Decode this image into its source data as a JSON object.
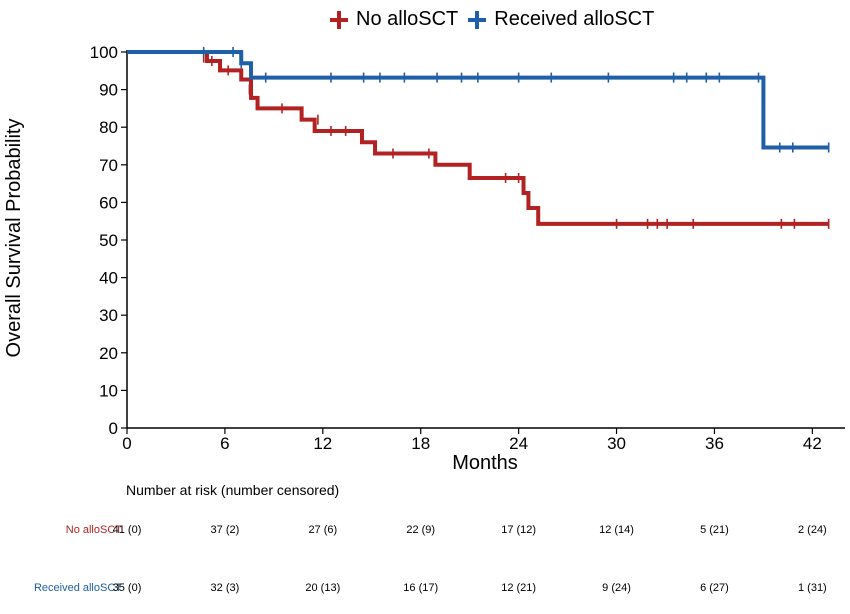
{
  "chart_data": {
    "type": "line",
    "subtype": "kaplan-meier step",
    "xlabel": "Months",
    "ylabel": "Overall Survival Probability",
    "xlim": [
      0,
      44
    ],
    "ylim": [
      0,
      100
    ],
    "xticks": [
      0,
      6,
      12,
      18,
      24,
      30,
      36,
      42
    ],
    "yticks": [
      0,
      10,
      20,
      30,
      40,
      50,
      60,
      70,
      80,
      90,
      100
    ],
    "grid": false,
    "legend_position": "top",
    "series": [
      {
        "name": "No alloSCT",
        "color": "#b22222",
        "steps": [
          [
            0,
            100
          ],
          [
            4.9,
            97.6
          ],
          [
            5.7,
            95.1
          ],
          [
            7.0,
            92.7
          ],
          [
            7.6,
            87.8
          ],
          [
            8.0,
            85.0
          ],
          [
            10.7,
            82.0
          ],
          [
            11.5,
            79.0
          ],
          [
            14.4,
            76.0
          ],
          [
            15.2,
            73.0
          ],
          [
            18.9,
            70.0
          ],
          [
            21.0,
            66.5
          ],
          [
            24.3,
            62.5
          ],
          [
            24.6,
            58.5
          ],
          [
            25.2,
            54.3
          ],
          [
            43.0,
            54.3
          ]
        ],
        "censored": [
          [
            4.7,
            98.5
          ],
          [
            5.2,
            97.6
          ],
          [
            6.2,
            95.1
          ],
          [
            7.5,
            90.0
          ],
          [
            9.5,
            85.0
          ],
          [
            11.7,
            82.0
          ],
          [
            12.5,
            79.0
          ],
          [
            13.4,
            79.0
          ],
          [
            16.3,
            73.0
          ],
          [
            18.5,
            73.0
          ],
          [
            23.2,
            66.5
          ],
          [
            24.0,
            66.5
          ],
          [
            30.0,
            54.3
          ],
          [
            31.9,
            54.3
          ],
          [
            32.5,
            54.3
          ],
          [
            33.1,
            54.3
          ],
          [
            34.7,
            54.3
          ],
          [
            40.1,
            54.3
          ],
          [
            40.9,
            54.3
          ],
          [
            43.0,
            54.3
          ]
        ]
      },
      {
        "name": "Received alloSCT",
        "color": "#1f5fa8",
        "steps": [
          [
            0,
            100
          ],
          [
            7.0,
            97.0
          ],
          [
            7.6,
            93.2
          ],
          [
            38.8,
            93.2
          ],
          [
            39.0,
            74.6
          ],
          [
            43.0,
            74.6
          ]
        ],
        "censored": [
          [
            4.7,
            100
          ],
          [
            6.5,
            100
          ],
          [
            7.0,
            97.0
          ],
          [
            8.5,
            93.2
          ],
          [
            12.5,
            93.2
          ],
          [
            14.5,
            93.2
          ],
          [
            15.5,
            93.2
          ],
          [
            17.0,
            93.2
          ],
          [
            19.0,
            93.2
          ],
          [
            20.5,
            93.2
          ],
          [
            21.5,
            93.2
          ],
          [
            24.0,
            93.2
          ],
          [
            26.0,
            93.2
          ],
          [
            29.5,
            93.2
          ],
          [
            33.5,
            93.2
          ],
          [
            34.3,
            93.2
          ],
          [
            35.5,
            93.2
          ],
          [
            36.3,
            93.2
          ],
          [
            38.7,
            93.2
          ],
          [
            40.0,
            74.6
          ],
          [
            40.8,
            74.6
          ],
          [
            43.0,
            74.6
          ]
        ]
      }
    ]
  },
  "risk_table": {
    "title": "Number at risk (number censored)",
    "rows": [
      {
        "label": "No alloSCT",
        "color": "#b22222",
        "values": [
          "41 (0)",
          "37 (2)",
          "27 (6)",
          "22 (9)",
          "17 (12)",
          "12 (14)",
          "5 (21)",
          "2 (24)"
        ]
      },
      {
        "label": "Received alloSCT",
        "color": "#1f5fa8",
        "values": [
          "35 (0)",
          "32 (3)",
          "20 (13)",
          "16 (17)",
          "12 (21)",
          "9 (24)",
          "6 (27)",
          "1 (31)"
        ]
      }
    ]
  }
}
